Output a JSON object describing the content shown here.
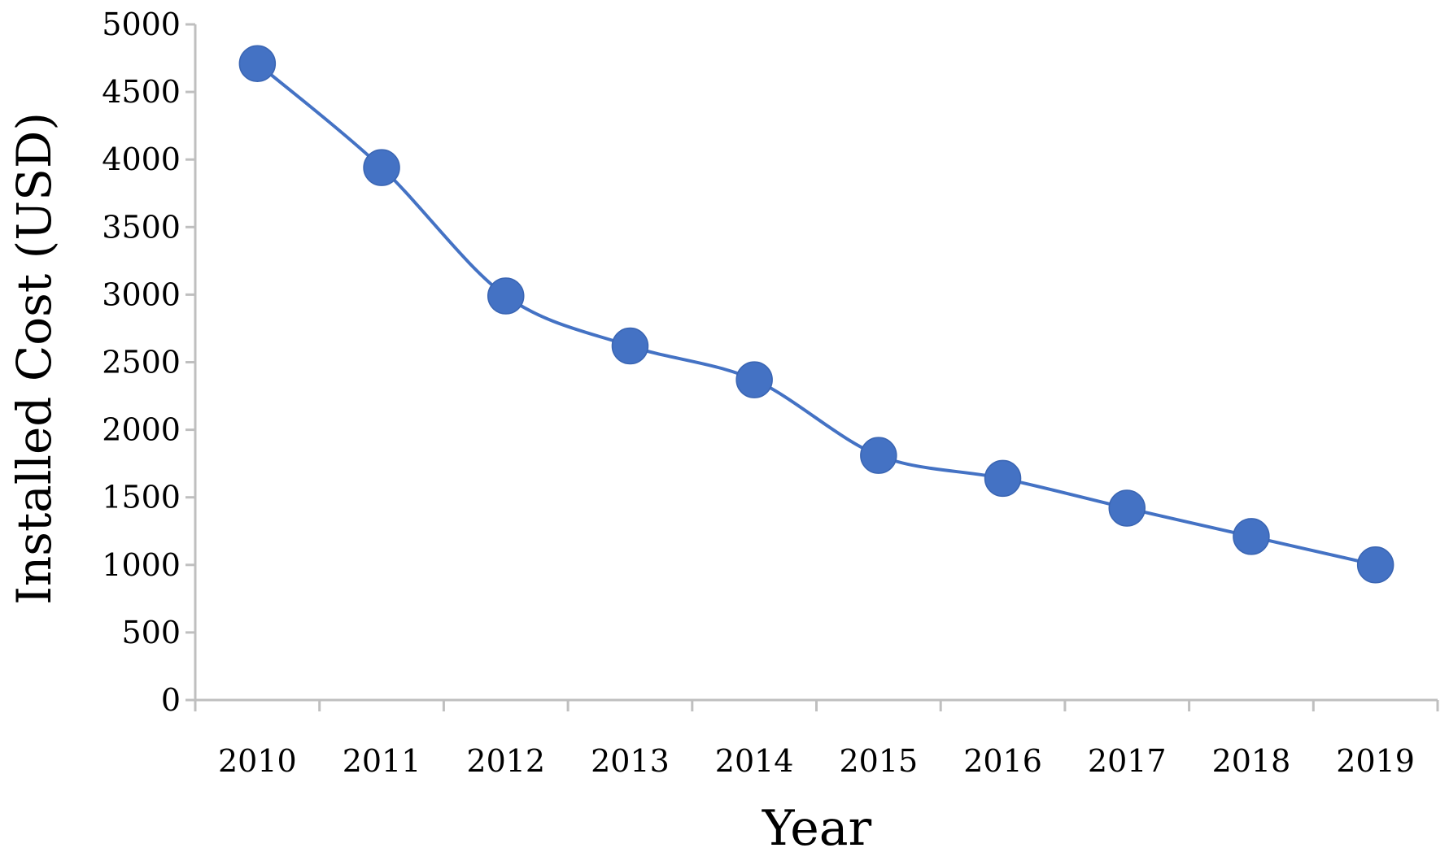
{
  "chart_data": {
    "type": "line",
    "title": "",
    "xlabel": "Year",
    "ylabel": "Installed Cost (USD)",
    "categories": [
      "2010",
      "2011",
      "2012",
      "2013",
      "2014",
      "2015",
      "2016",
      "2017",
      "2018",
      "2019"
    ],
    "series": [
      {
        "values": [
          4710,
          3940,
          2990,
          2620,
          2370,
          1810,
          1640,
          1420,
          1210,
          1000
        ]
      }
    ],
    "ylim": [
      0,
      5000
    ],
    "yticks": [
      0,
      500,
      1000,
      1500,
      2000,
      2500,
      3000,
      3500,
      4000,
      4500,
      5000
    ],
    "grid": false,
    "legend": "none",
    "colors": {
      "series": "#4472C4",
      "axis": "#BFBFBF",
      "text": "#000000"
    }
  }
}
